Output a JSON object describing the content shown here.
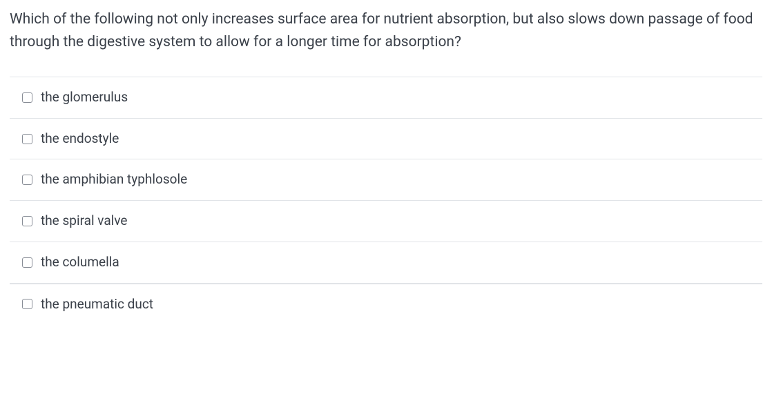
{
  "question": {
    "text": "Which of the following not only increases surface area for nutrient absorption, but also slows down passage of food through the digestive system to allow for a longer time for absorption?"
  },
  "options": [
    {
      "label": "the glomerulus",
      "checked": false
    },
    {
      "label": "the endostyle",
      "checked": false
    },
    {
      "label": "the amphibian typhlosole",
      "checked": false
    },
    {
      "label": "the spiral valve",
      "checked": false
    },
    {
      "label": "the columella",
      "checked": false
    },
    {
      "label": "the pneumatic duct",
      "checked": false
    }
  ],
  "styling": {
    "text_color": "#3a4049",
    "border_color": "#e1e4e8",
    "checkbox_border": "#888d96",
    "background": "#ffffff",
    "question_fontsize": 21,
    "option_fontsize": 19,
    "checkbox_size": 15,
    "checkbox_radius": 3
  }
}
